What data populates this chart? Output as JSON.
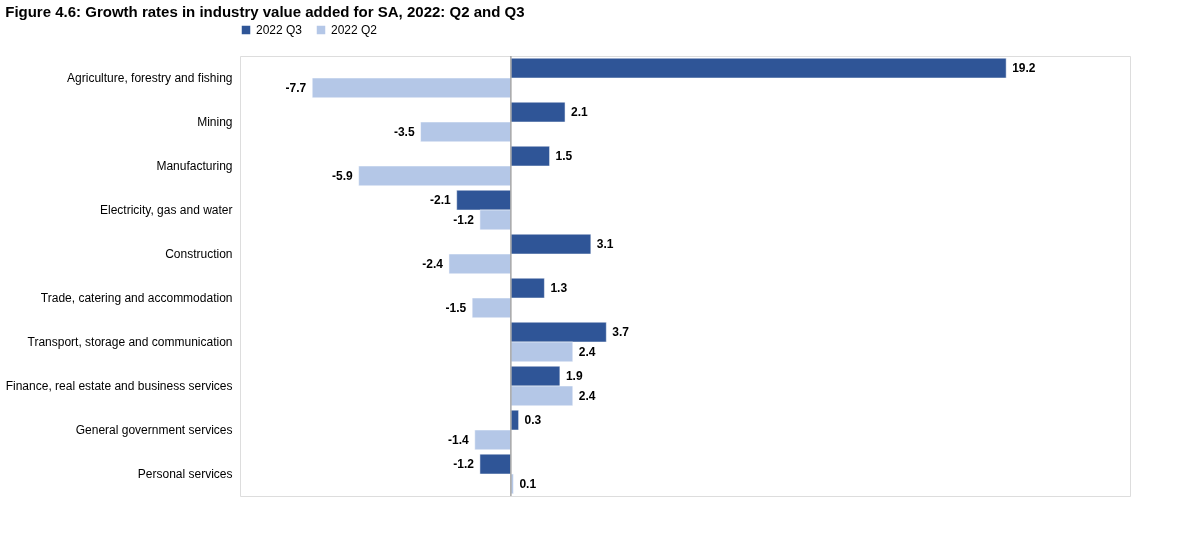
{
  "chart_data": {
    "type": "bar",
    "orientation": "horizontal",
    "title": "Figure 4.6: Growth rates in industry value added for SA, 2022: Q2 and Q3",
    "categories": [
      "Agriculture, forestry and fishing",
      "Mining",
      "Manufacturing",
      "Electricity, gas and water",
      "Construction",
      "Trade, catering and accommodation",
      "Transport, storage and communication",
      "Finance, real estate and business services",
      "General government services",
      "Personal services"
    ],
    "series": [
      {
        "name": "2022 Q3",
        "color": "#2f5597",
        "values": [
          19.2,
          2.1,
          1.5,
          -2.1,
          3.1,
          1.3,
          3.7,
          1.9,
          0.3,
          -1.2
        ]
      },
      {
        "name": "2022 Q2",
        "color": "#b4c7e7",
        "values": [
          -7.7,
          -3.5,
          -5.9,
          -1.2,
          -2.4,
          -1.5,
          2.4,
          2.4,
          -1.4,
          0.1
        ]
      }
    ],
    "xlim": [
      -10.5,
      24
    ],
    "tick_labels": "y",
    "data_labels": true,
    "legend": "top"
  }
}
